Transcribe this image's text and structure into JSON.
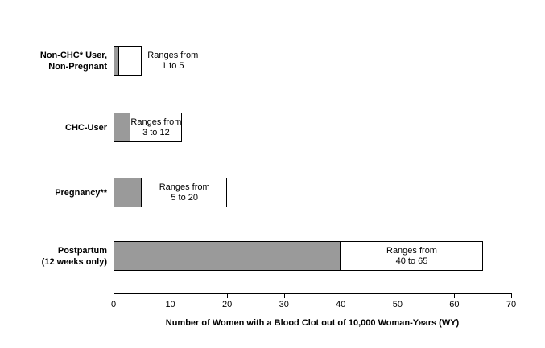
{
  "chart_data": {
    "type": "bar",
    "orientation": "horizontal",
    "title": "",
    "xlabel": "Number of Women with a Blood Clot out of 10,000 Woman-Years (WY)",
    "xlim": [
      0,
      70
    ],
    "x_ticks": [
      0,
      10,
      20,
      30,
      40,
      50,
      60,
      70
    ],
    "grid": false,
    "legend": "none",
    "categories": [
      {
        "label": "Non-CHC* User, Non-Pregnant",
        "label_lines": [
          "Non-CHC* User,",
          "Non-Pregnant"
        ],
        "range_low": 1,
        "range_high": 5,
        "annotation_lines": [
          "Ranges from",
          "1 to 5"
        ],
        "annotation_position": "outside"
      },
      {
        "label": "CHC-User",
        "label_lines": [
          "CHC-User"
        ],
        "range_low": 3,
        "range_high": 12,
        "annotation_lines": [
          "Ranges from",
          "3 to 12"
        ],
        "annotation_position": "inside"
      },
      {
        "label": "Pregnancy**",
        "label_lines": [
          "Pregnancy**"
        ],
        "range_low": 5,
        "range_high": 20,
        "annotation_lines": [
          "Ranges from",
          "5 to 20"
        ],
        "annotation_position": "inside"
      },
      {
        "label": "Postpartum (12 weeks only)",
        "label_lines": [
          "Postpartum",
          "(12 weeks only)"
        ],
        "range_low": 40,
        "range_high": 65,
        "annotation_lines": [
          "Ranges from",
          "40 to 65"
        ],
        "annotation_position": "inside"
      }
    ],
    "colors": {
      "bar_low_fill": "#9a9a9a",
      "bar_range_fill": "#ffffff",
      "bar_border": "#000000",
      "axis": "#000000",
      "text": "#000000",
      "background": "#ffffff"
    }
  }
}
